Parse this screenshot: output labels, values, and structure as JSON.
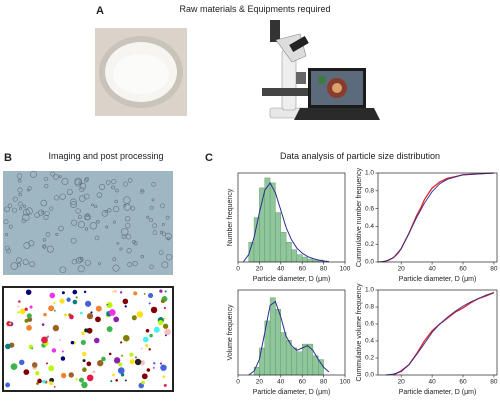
{
  "panels": [
    {
      "label": "A",
      "title": "Raw materials & Equipments required"
    },
    {
      "label": "B",
      "title": "Imaging and post processing"
    },
    {
      "label": "C",
      "title": "Data analysis of particle size distribution"
    }
  ],
  "chart_data": [
    {
      "type": "histogram",
      "xlabel": "Particle diameter, D (μm)",
      "ylabel": "Number frequency",
      "bins": [
        10,
        15,
        20,
        25,
        30,
        35,
        40,
        45,
        50,
        55,
        60,
        65,
        70,
        75,
        80
      ],
      "values": [
        4,
        9,
        15,
        17,
        16,
        10,
        6,
        4,
        2.5,
        1.5,
        1,
        0.6,
        0.4,
        0.4
      ],
      "color": "#8fc69a",
      "xlim": [
        0,
        100
      ],
      "xticks": [
        0,
        20,
        40,
        60,
        80,
        100
      ],
      "ylim": [
        0,
        18
      ],
      "fit": {
        "color": "#2b2f8f",
        "x": [
          5,
          10,
          15,
          20,
          25,
          30,
          35,
          40,
          45,
          50,
          55,
          60,
          65,
          70,
          75,
          80,
          85
        ],
        "values": [
          0,
          1.5,
          5,
          10,
          14.5,
          16,
          14,
          10.5,
          7,
          4.5,
          2.8,
          1.8,
          1.1,
          0.7,
          0.4,
          0.2,
          0.1
        ]
      }
    },
    {
      "type": "line",
      "xlabel": "Particle diameter, D (μm)",
      "ylabel": "Cummulative number frequency",
      "xlim": [
        5,
        82
      ],
      "xticks": [
        20,
        40,
        60,
        80
      ],
      "ylim": [
        0,
        1
      ],
      "yticks": [
        {
          "value": 0,
          "label": "0.0"
        },
        0.2,
        0.4,
        0.6,
        0.8,
        {
          "value": 1,
          "label": "1.0"
        }
      ],
      "series": [
        {
          "color": "#e8202a",
          "x": [
            8,
            12,
            15,
            18,
            20,
            22,
            25,
            28,
            30,
            33,
            35,
            38,
            40,
            45,
            50,
            55,
            60,
            70,
            80
          ],
          "values": [
            0,
            0.02,
            0.05,
            0.1,
            0.15,
            0.22,
            0.32,
            0.44,
            0.52,
            0.62,
            0.7,
            0.78,
            0.83,
            0.9,
            0.94,
            0.96,
            0.98,
            0.99,
            1.0
          ]
        },
        {
          "color": "#2b2f8f",
          "x": [
            5,
            10,
            15,
            20,
            25,
            30,
            35,
            40,
            45,
            50,
            60,
            70,
            80
          ],
          "values": [
            0,
            0.01,
            0.05,
            0.15,
            0.32,
            0.5,
            0.66,
            0.79,
            0.88,
            0.93,
            0.98,
            0.99,
            1.0
          ]
        }
      ]
    },
    {
      "type": "histogram",
      "xlabel": "Particle diameter, D (μm)",
      "ylabel": "Volume frequency",
      "bins": [
        15,
        20,
        25,
        30,
        35,
        40,
        45,
        50,
        55,
        60,
        65,
        70,
        75,
        80
      ],
      "values": [
        1,
        3.5,
        7,
        10,
        8.5,
        5.5,
        4.5,
        3.5,
        3,
        4,
        4,
        2.5,
        2
      ],
      "color": "#8fc69a",
      "xlim": [
        0,
        100
      ],
      "xticks": [
        0,
        20,
        40,
        60,
        80,
        100
      ],
      "ylim": [
        0,
        11
      ],
      "fit": {
        "color": "#2b2f8f",
        "x": [
          10,
          15,
          20,
          25,
          30,
          35,
          40,
          45,
          50,
          55,
          60,
          65,
          70,
          75,
          80,
          85
        ],
        "values": [
          0,
          0.5,
          2,
          5.5,
          9,
          9.5,
          7.5,
          5,
          3.8,
          3.2,
          3.5,
          3.8,
          3.2,
          2,
          1,
          0.4
        ]
      }
    },
    {
      "type": "line",
      "xlabel": "Particle diameter, D (μm)",
      "ylabel": "Cummulative volume frequency",
      "xlim": [
        5,
        82
      ],
      "xticks": [
        20,
        40,
        60,
        80
      ],
      "ylim": [
        0,
        1
      ],
      "yticks": [
        {
          "value": 0,
          "label": "0.0"
        },
        0.2,
        0.4,
        0.6,
        0.8,
        {
          "value": 1,
          "label": "1.0"
        }
      ],
      "series": [
        {
          "color": "#e8202a",
          "x": [
            15,
            20,
            25,
            30,
            35,
            40,
            45,
            50,
            55,
            60,
            65,
            70,
            75,
            80
          ],
          "values": [
            0,
            0.05,
            0.12,
            0.25,
            0.4,
            0.52,
            0.6,
            0.67,
            0.74,
            0.79,
            0.85,
            0.9,
            0.93,
            0.97
          ]
        },
        {
          "color": "#2b2f8f",
          "x": [
            10,
            15,
            20,
            25,
            30,
            35,
            40,
            45,
            50,
            55,
            60,
            65,
            70,
            75,
            80
          ],
          "values": [
            0,
            0.01,
            0.04,
            0.12,
            0.24,
            0.37,
            0.5,
            0.6,
            0.68,
            0.75,
            0.81,
            0.86,
            0.9,
            0.94,
            0.97
          ]
        }
      ]
    }
  ]
}
